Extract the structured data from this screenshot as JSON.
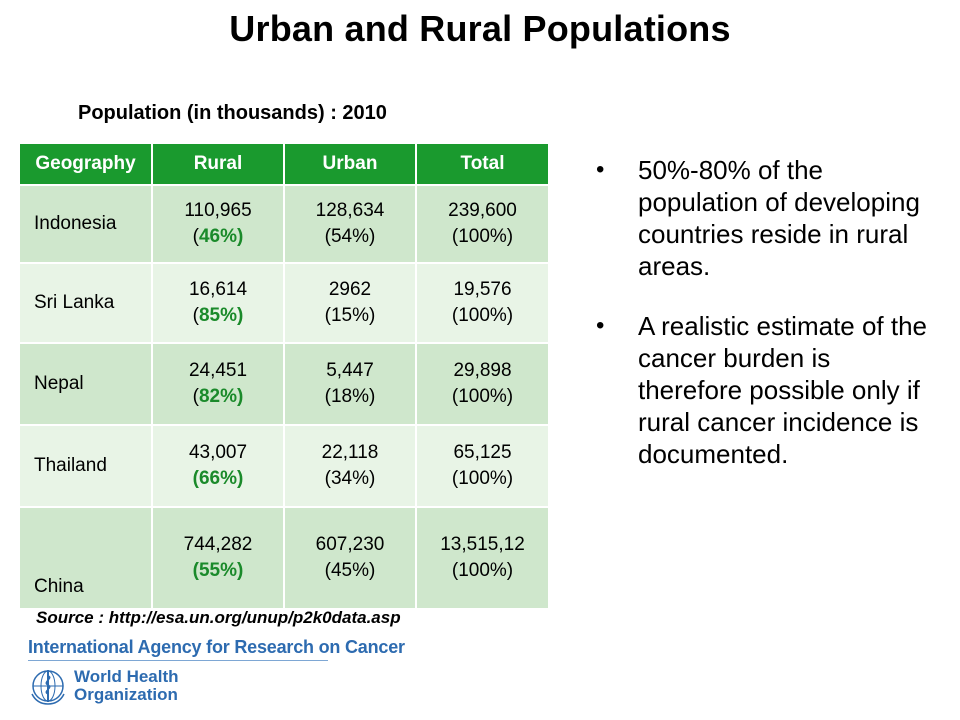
{
  "title": "Urban and Rural Populations",
  "subtitle": "Population (in thousands) : 2010",
  "table": {
    "headers": [
      "Geography",
      "Rural",
      "Urban",
      "Total"
    ],
    "rows": [
      {
        "geo": "Indonesia",
        "rural_val": "110,965",
        "rural_pct": "46%",
        "urban_val": "128,634",
        "urban_pct": "(54%)",
        "total_val": "239,600",
        "total_pct": "(100%)"
      },
      {
        "geo": "Sri Lanka",
        "rural_val": "16,614",
        "rural_pct": "85%",
        "urban_val": "2962",
        "urban_pct": "(15%)",
        "total_val": "19,576",
        "total_pct": "(100%)"
      },
      {
        "geo": "Nepal",
        "rural_val": "24,451",
        "rural_pct": "82%",
        "urban_val": "5,447",
        "urban_pct": "(18%)",
        "total_val": "29,898",
        "total_pct": "(100%)"
      },
      {
        "geo": "Thailand",
        "rural_val": "43,007",
        "rural_pct": "(66%)",
        "urban_val": "22,118",
        "urban_pct": "(34%)",
        "total_val": "65,125",
        "total_pct": "(100%)"
      },
      {
        "geo": "China",
        "rural_val": "744,282",
        "rural_pct": "(55%)",
        "urban_val": "607,230",
        "urban_pct": "(45%)",
        "total_val": "13,515,12",
        "total_pct": "(100%)"
      }
    ]
  },
  "source": "Source : http://esa.un.org/unup/p2k0data.asp",
  "bullets": [
    "50%-80% of the population of developing countries reside in rural areas.",
    "A realistic estimate of the cancer burden is therefore possible only if rural cancer incidence is documented."
  ],
  "footer": {
    "agency": "International Agency for Research on Cancer",
    "who_line1": "World Health",
    "who_line2": "Organization"
  },
  "colors": {
    "header_green": "#1a9a2e",
    "row_dark": "#cfe7cc",
    "row_light": "#e8f4e6",
    "pct_green": "#1a8a2a",
    "footer_blue": "#2d6bb0"
  },
  "icons": {
    "who_logo": "who-emblem-icon"
  }
}
